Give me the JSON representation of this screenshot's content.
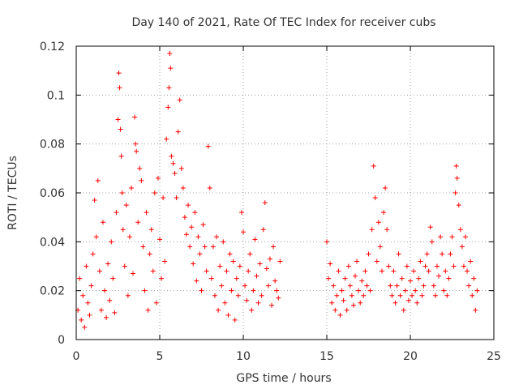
{
  "chart_data": {
    "type": "scatter",
    "title": "Day 140 of 2021, Rate Of TEC Index for receiver cubs",
    "xlabel": "GPS time / hours",
    "ylabel": "ROTI / TECUs",
    "xlim": [
      0,
      25
    ],
    "ylim": [
      0,
      0.12
    ],
    "xticks": [
      0,
      5,
      10,
      15,
      20,
      25
    ],
    "xtick_labels": [
      "0",
      "5",
      "10",
      "15",
      "20",
      "25"
    ],
    "yticks": [
      0,
      0.02,
      0.04,
      0.06,
      0.08,
      0.1,
      0.12
    ],
    "ytick_labels": [
      "0",
      "0.02",
      "0.04",
      "0.06",
      "0.08",
      "0.1",
      "0.12"
    ],
    "grid": true,
    "marker": "plus",
    "color": "#ff0000",
    "series": [
      {
        "name": "ROTI",
        "points": [
          [
            0.1,
            0.012
          ],
          [
            0.2,
            0.025
          ],
          [
            0.3,
            0.008
          ],
          [
            0.4,
            0.018
          ],
          [
            0.5,
            0.005
          ],
          [
            0.6,
            0.03
          ],
          [
            0.7,
            0.015
          ],
          [
            0.8,
            0.01
          ],
          [
            0.9,
            0.022
          ],
          [
            1.0,
            0.035
          ],
          [
            1.1,
            0.057
          ],
          [
            1.2,
            0.042
          ],
          [
            1.3,
            0.065
          ],
          [
            1.4,
            0.028
          ],
          [
            1.5,
            0.012
          ],
          [
            1.6,
            0.048
          ],
          [
            1.7,
            0.02
          ],
          [
            1.8,
            0.009
          ],
          [
            1.9,
            0.031
          ],
          [
            2.0,
            0.016
          ],
          [
            2.1,
            0.04
          ],
          [
            2.2,
            0.025
          ],
          [
            2.3,
            0.011
          ],
          [
            2.4,
            0.052
          ],
          [
            2.5,
            0.09
          ],
          [
            2.55,
            0.109
          ],
          [
            2.6,
            0.103
          ],
          [
            2.65,
            0.086
          ],
          [
            2.7,
            0.075
          ],
          [
            2.75,
            0.06
          ],
          [
            2.8,
            0.045
          ],
          [
            2.9,
            0.03
          ],
          [
            3.0,
            0.055
          ],
          [
            3.1,
            0.018
          ],
          [
            3.2,
            0.042
          ],
          [
            3.3,
            0.062
          ],
          [
            3.4,
            0.027
          ],
          [
            3.5,
            0.091
          ],
          [
            3.55,
            0.08
          ],
          [
            3.6,
            0.077
          ],
          [
            3.7,
            0.048
          ],
          [
            3.8,
            0.07
          ],
          [
            3.9,
            0.065
          ],
          [
            4.0,
            0.038
          ],
          [
            4.1,
            0.02
          ],
          [
            4.2,
            0.052
          ],
          [
            4.3,
            0.012
          ],
          [
            4.4,
            0.035
          ],
          [
            4.5,
            0.045
          ],
          [
            4.6,
            0.028
          ],
          [
            4.7,
            0.06
          ],
          [
            4.8,
            0.015
          ],
          [
            4.9,
            0.066
          ],
          [
            5.0,
            0.041
          ],
          [
            5.1,
            0.025
          ],
          [
            5.2,
            0.058
          ],
          [
            5.3,
            0.032
          ],
          [
            5.4,
            0.082
          ],
          [
            5.5,
            0.095
          ],
          [
            5.55,
            0.103
          ],
          [
            5.6,
            0.117
          ],
          [
            5.65,
            0.111
          ],
          [
            5.7,
            0.075
          ],
          [
            5.8,
            0.072
          ],
          [
            5.9,
            0.068
          ],
          [
            6.0,
            0.058
          ],
          [
            6.1,
            0.085
          ],
          [
            6.2,
            0.098
          ],
          [
            6.3,
            0.07
          ],
          [
            6.4,
            0.062
          ],
          [
            6.5,
            0.05
          ],
          [
            6.6,
            0.043
          ],
          [
            6.7,
            0.055
          ],
          [
            6.8,
            0.038
          ],
          [
            6.9,
            0.046
          ],
          [
            7.0,
            0.031
          ],
          [
            7.1,
            0.052
          ],
          [
            7.2,
            0.024
          ],
          [
            7.3,
            0.042
          ],
          [
            7.4,
            0.035
          ],
          [
            7.5,
            0.02
          ],
          [
            7.6,
            0.047
          ],
          [
            7.7,
            0.038
          ],
          [
            7.8,
            0.028
          ],
          [
            7.9,
            0.079
          ],
          [
            8.0,
            0.062
          ],
          [
            8.1,
            0.025
          ],
          [
            8.2,
            0.038
          ],
          [
            8.3,
            0.018
          ],
          [
            8.4,
            0.042
          ],
          [
            8.5,
            0.012
          ],
          [
            8.6,
            0.03
          ],
          [
            8.7,
            0.022
          ],
          [
            8.8,
            0.04
          ],
          [
            8.9,
            0.015
          ],
          [
            9.0,
            0.028
          ],
          [
            9.1,
            0.01
          ],
          [
            9.2,
            0.035
          ],
          [
            9.3,
            0.02
          ],
          [
            9.4,
            0.032
          ],
          [
            9.5,
            0.008
          ],
          [
            9.6,
            0.025
          ],
          [
            9.7,
            0.018
          ],
          [
            9.8,
            0.03
          ],
          [
            9.9,
            0.052
          ],
          [
            10.0,
            0.044
          ],
          [
            10.1,
            0.022
          ],
          [
            10.2,
            0.016
          ],
          [
            10.3,
            0.028
          ],
          [
            10.4,
            0.035
          ],
          [
            10.5,
            0.012
          ],
          [
            10.6,
            0.02
          ],
          [
            10.7,
            0.041
          ],
          [
            10.8,
            0.026
          ],
          [
            10.9,
            0.015
          ],
          [
            11.0,
            0.031
          ],
          [
            11.1,
            0.018
          ],
          [
            11.2,
            0.045
          ],
          [
            11.3,
            0.056
          ],
          [
            11.4,
            0.029
          ],
          [
            11.5,
            0.022
          ],
          [
            11.6,
            0.033
          ],
          [
            11.7,
            0.014
          ],
          [
            11.8,
            0.038
          ],
          [
            11.9,
            0.024
          ],
          [
            12.0,
            0.02
          ],
          [
            12.1,
            0.017
          ],
          [
            12.2,
            0.032
          ],
          [
            15.0,
            0.04
          ],
          [
            15.1,
            0.025
          ],
          [
            15.2,
            0.031
          ],
          [
            15.3,
            0.015
          ],
          [
            15.4,
            0.022
          ],
          [
            15.5,
            0.012
          ],
          [
            15.6,
            0.018
          ],
          [
            15.7,
            0.028
          ],
          [
            15.8,
            0.01
          ],
          [
            15.9,
            0.02
          ],
          [
            16.0,
            0.016
          ],
          [
            16.1,
            0.025
          ],
          [
            16.2,
            0.012
          ],
          [
            16.3,
            0.03
          ],
          [
            16.4,
            0.022
          ],
          [
            16.5,
            0.018
          ],
          [
            16.6,
            0.014
          ],
          [
            16.7,
            0.026
          ],
          [
            16.8,
            0.032
          ],
          [
            16.9,
            0.02
          ],
          [
            17.0,
            0.015
          ],
          [
            17.1,
            0.024
          ],
          [
            17.2,
            0.018
          ],
          [
            17.3,
            0.028
          ],
          [
            17.4,
            0.022
          ],
          [
            17.5,
            0.035
          ],
          [
            17.6,
            0.02
          ],
          [
            17.7,
            0.045
          ],
          [
            17.8,
            0.071
          ],
          [
            17.9,
            0.058
          ],
          [
            18.0,
            0.032
          ],
          [
            18.1,
            0.048
          ],
          [
            18.2,
            0.038
          ],
          [
            18.3,
            0.028
          ],
          [
            18.4,
            0.052
          ],
          [
            18.5,
            0.062
          ],
          [
            18.6,
            0.045
          ],
          [
            18.7,
            0.03
          ],
          [
            18.8,
            0.022
          ],
          [
            18.9,
            0.018
          ],
          [
            19.0,
            0.028
          ],
          [
            19.1,
            0.015
          ],
          [
            19.2,
            0.022
          ],
          [
            19.3,
            0.035
          ],
          [
            19.4,
            0.018
          ],
          [
            19.5,
            0.025
          ],
          [
            19.6,
            0.012
          ],
          [
            19.7,
            0.02
          ],
          [
            19.8,
            0.03
          ],
          [
            19.9,
            0.016
          ],
          [
            20.0,
            0.024
          ],
          [
            20.1,
            0.018
          ],
          [
            20.2,
            0.028
          ],
          [
            20.3,
            0.02
          ],
          [
            20.4,
            0.015
          ],
          [
            20.5,
            0.025
          ],
          [
            20.6,
            0.032
          ],
          [
            20.7,
            0.018
          ],
          [
            20.8,
            0.022
          ],
          [
            20.9,
            0.03
          ],
          [
            21.0,
            0.035
          ],
          [
            21.1,
            0.028
          ],
          [
            21.2,
            0.046
          ],
          [
            21.3,
            0.04
          ],
          [
            21.4,
            0.022
          ],
          [
            21.5,
            0.018
          ],
          [
            21.6,
            0.03
          ],
          [
            21.7,
            0.026
          ],
          [
            21.8,
            0.042
          ],
          [
            21.9,
            0.035
          ],
          [
            22.0,
            0.02
          ],
          [
            22.1,
            0.028
          ],
          [
            22.2,
            0.018
          ],
          [
            22.3,
            0.025
          ],
          [
            22.4,
            0.035
          ],
          [
            22.5,
            0.042
          ],
          [
            22.6,
            0.03
          ],
          [
            22.7,
            0.06
          ],
          [
            22.75,
            0.071
          ],
          [
            22.8,
            0.066
          ],
          [
            22.9,
            0.055
          ],
          [
            23.0,
            0.045
          ],
          [
            23.1,
            0.038
          ],
          [
            23.2,
            0.03
          ],
          [
            23.3,
            0.042
          ],
          [
            23.4,
            0.028
          ],
          [
            23.5,
            0.022
          ],
          [
            23.6,
            0.032
          ],
          [
            23.7,
            0.018
          ],
          [
            23.8,
            0.025
          ],
          [
            23.9,
            0.012
          ],
          [
            24.0,
            0.02
          ]
        ]
      }
    ]
  }
}
